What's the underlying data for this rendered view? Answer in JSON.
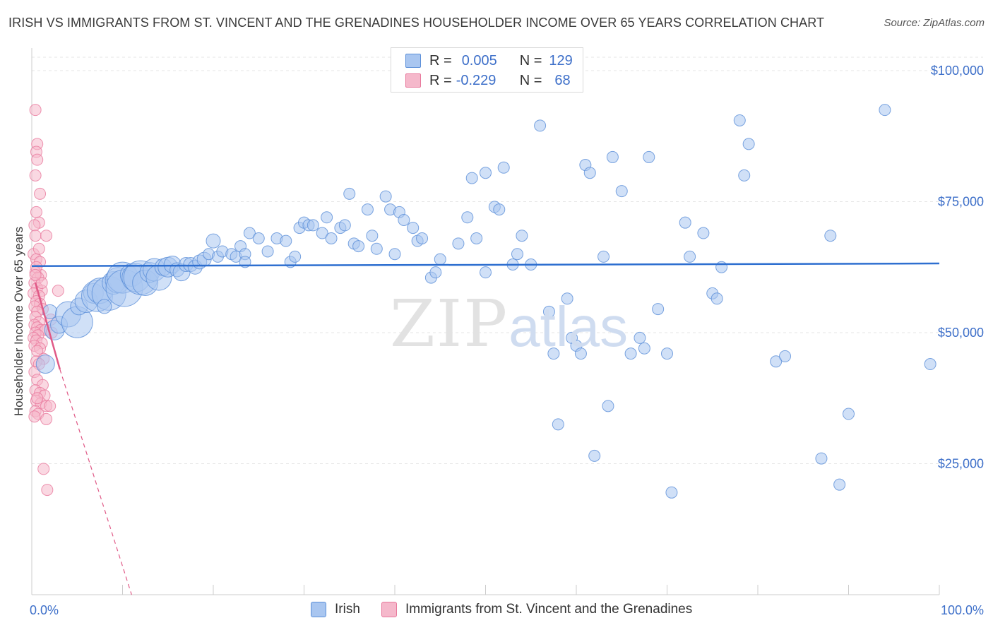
{
  "title": "IRISH VS IMMIGRANTS FROM ST. VINCENT AND THE GRENADINES HOUSEHOLDER INCOME OVER 65 YEARS CORRELATION CHART",
  "source": "Source: ZipAtlas.com",
  "watermark": {
    "zip": "ZIP",
    "atlas": "atlas"
  },
  "legend_box": {
    "rows": [
      {
        "r_label": "R =",
        "r_value": "0.005",
        "n_label": "N =",
        "n_value": "129",
        "color": "#a9c6f0"
      },
      {
        "r_label": "R =",
        "r_value": "-0.229",
        "n_label": "N =",
        "n_value": "68",
        "color": "#f5b8cb"
      }
    ]
  },
  "bottom_legend": {
    "irish": "Irish",
    "immigrants": "Immigrants from St. Vincent and the Grenadines"
  },
  "colors": {
    "irish_fill": "#a9c6f0",
    "irish_stroke": "#5b8fd8",
    "irish_line": "#2e6fd0",
    "imm_fill": "#f5b8cb",
    "imm_stroke": "#e8789c",
    "imm_line": "#e05a87",
    "grid": "#e6e6e6",
    "axis_text": "#3d6fc9"
  },
  "chart_data": {
    "type": "scatter",
    "title": "IRISH VS IMMIGRANTS FROM ST. VINCENT AND THE GRENADINES HOUSEHOLDER INCOME OVER 65 YEARS CORRELATION CHART",
    "xlabel": "",
    "ylabel": "Householder Income Over 65 years",
    "xlim": [
      0,
      100
    ],
    "ylim": [
      0,
      100000
    ],
    "x_tick_labels": [
      "0.0%",
      "100.0%"
    ],
    "y_ticks": [
      25000,
      50000,
      75000,
      100000
    ],
    "y_tick_labels": [
      "$25,000",
      "$50,000",
      "$75,000",
      "$100,000"
    ],
    "grid": true,
    "legend_position": "top-center",
    "series": [
      {
        "name": "Irish",
        "trend": {
          "x": [
            0,
            100
          ],
          "y": [
            62700,
            63200
          ]
        },
        "points": [
          [
            1.5,
            44000,
            13
          ],
          [
            2,
            54000,
            10
          ],
          [
            2.5,
            50500,
            14
          ],
          [
            3,
            51500,
            12
          ],
          [
            4,
            53500,
            18
          ],
          [
            5,
            52000,
            22
          ],
          [
            5.2,
            55000,
            12
          ],
          [
            6,
            56000,
            16
          ],
          [
            6.8,
            57500,
            14
          ],
          [
            7.2,
            57000,
            22
          ],
          [
            7.5,
            58000,
            18
          ],
          [
            8.5,
            57500,
            24
          ],
          [
            9,
            59500,
            16
          ],
          [
            9.5,
            60000,
            18
          ],
          [
            10,
            60500,
            22
          ],
          [
            10.2,
            58500,
            26
          ],
          [
            11,
            61000,
            16
          ],
          [
            11.5,
            60500,
            20
          ],
          [
            12,
            60500,
            24
          ],
          [
            12.5,
            59500,
            18
          ],
          [
            13,
            61500,
            14
          ],
          [
            13.5,
            62000,
            16
          ],
          [
            14,
            60500,
            18
          ],
          [
            14.5,
            62500,
            12
          ],
          [
            15,
            62500,
            14
          ],
          [
            15.5,
            63000,
            12
          ],
          [
            16,
            62000,
            10
          ],
          [
            16.5,
            61500,
            12
          ],
          [
            17,
            63000,
            10
          ],
          [
            17.5,
            63000,
            10
          ],
          [
            18,
            62500,
            10
          ],
          [
            18.5,
            63500,
            10
          ],
          [
            19,
            64000,
            10
          ],
          [
            19.5,
            65000,
            8
          ],
          [
            20,
            67500,
            10
          ],
          [
            20.5,
            64500,
            8
          ],
          [
            21,
            65500,
            8
          ],
          [
            22,
            65000,
            8
          ],
          [
            22.5,
            64500,
            8
          ],
          [
            23,
            66500,
            8
          ],
          [
            23.5,
            65000,
            8
          ],
          [
            24,
            69000,
            8
          ],
          [
            25,
            68000,
            8
          ],
          [
            26,
            65500,
            8
          ],
          [
            27,
            68000,
            8
          ],
          [
            28,
            67500,
            8
          ],
          [
            28.5,
            63500,
            8
          ],
          [
            29,
            64500,
            8
          ],
          [
            29.5,
            70000,
            8
          ],
          [
            30,
            71000,
            8
          ],
          [
            30.5,
            70500,
            8
          ],
          [
            31,
            70500,
            8
          ],
          [
            32,
            69000,
            8
          ],
          [
            32.5,
            72000,
            8
          ],
          [
            33,
            68000,
            8
          ],
          [
            34,
            70000,
            8
          ],
          [
            34.5,
            70500,
            8
          ],
          [
            35,
            76500,
            8
          ],
          [
            35.5,
            67000,
            8
          ],
          [
            36,
            66500,
            8
          ],
          [
            37,
            73500,
            8
          ],
          [
            37.5,
            68500,
            8
          ],
          [
            38,
            66000,
            8
          ],
          [
            39,
            76000,
            8
          ],
          [
            39.5,
            73500,
            8
          ],
          [
            40,
            65000,
            8
          ],
          [
            40.5,
            73000,
            8
          ],
          [
            41,
            71500,
            8
          ],
          [
            42,
            70000,
            8
          ],
          [
            42.5,
            67500,
            8
          ],
          [
            43,
            68000,
            8
          ],
          [
            44,
            60500,
            8
          ],
          [
            44.5,
            61500,
            8
          ],
          [
            45,
            64000,
            8
          ],
          [
            46,
            98500,
            8
          ],
          [
            47,
            67000,
            8
          ],
          [
            48,
            72000,
            8
          ],
          [
            48.5,
            79500,
            8
          ],
          [
            49,
            68000,
            8
          ],
          [
            50,
            80500,
            8
          ],
          [
            51,
            74000,
            8
          ],
          [
            51.5,
            73500,
            8
          ],
          [
            52,
            81500,
            8
          ],
          [
            53,
            63000,
            8
          ],
          [
            53.5,
            65000,
            8
          ],
          [
            54,
            68500,
            8
          ],
          [
            55,
            63000,
            8
          ],
          [
            56,
            89500,
            8
          ],
          [
            57,
            54000,
            8
          ],
          [
            57.5,
            46000,
            8
          ],
          [
            58,
            32500,
            8
          ],
          [
            59,
            56500,
            8
          ],
          [
            59.5,
            49000,
            8
          ],
          [
            60,
            47500,
            8
          ],
          [
            60.5,
            46000,
            8
          ],
          [
            61,
            82000,
            8
          ],
          [
            61.5,
            80500,
            8
          ],
          [
            62,
            26500,
            8
          ],
          [
            63,
            64500,
            8
          ],
          [
            63.5,
            36000,
            8
          ],
          [
            64,
            83500,
            8
          ],
          [
            65,
            77000,
            8
          ],
          [
            66,
            46000,
            8
          ],
          [
            67,
            49000,
            8
          ],
          [
            67.5,
            47000,
            8
          ],
          [
            68,
            83500,
            8
          ],
          [
            69,
            54500,
            8
          ],
          [
            70,
            46000,
            8
          ],
          [
            70.5,
            19500,
            8
          ],
          [
            72,
            71000,
            8
          ],
          [
            72.5,
            64500,
            8
          ],
          [
            74,
            69000,
            8
          ],
          [
            75,
            57500,
            8
          ],
          [
            75.5,
            56500,
            8
          ],
          [
            76,
            62500,
            8
          ],
          [
            78,
            90500,
            8
          ],
          [
            78.5,
            80000,
            8
          ],
          [
            79,
            86000,
            8
          ],
          [
            82,
            44500,
            8
          ],
          [
            83,
            45500,
            8
          ],
          [
            87,
            26000,
            8
          ],
          [
            88,
            68500,
            8
          ],
          [
            89,
            21000,
            8
          ],
          [
            90,
            34500,
            8
          ],
          [
            94,
            92500,
            8
          ],
          [
            99,
            44000,
            8
          ],
          [
            23.5,
            63500,
            8
          ],
          [
            50,
            61500,
            8
          ],
          [
            8,
            55000,
            10
          ]
        ]
      },
      {
        "name": "Immigrants from St. Vincent and the Grenadines",
        "trend": {
          "solid_x": [
            0.4,
            3.1
          ],
          "solid_y": [
            59500,
            43000
          ],
          "dashed_x": [
            3.1,
            11
          ],
          "dashed_y": [
            43000,
            0
          ]
        },
        "points": [
          [
            0.4,
            92500,
            8
          ],
          [
            0.6,
            86000,
            8
          ],
          [
            0.5,
            84500,
            8
          ],
          [
            0.6,
            83000,
            8
          ],
          [
            0.4,
            80000,
            8
          ],
          [
            0.9,
            76500,
            8
          ],
          [
            0.5,
            73000,
            8
          ],
          [
            0.8,
            71000,
            8
          ],
          [
            0.3,
            70500,
            8
          ],
          [
            0.4,
            68500,
            8
          ],
          [
            1.6,
            68500,
            8
          ],
          [
            0.2,
            65000,
            8
          ],
          [
            0.5,
            64000,
            8
          ],
          [
            0.9,
            63500,
            8
          ],
          [
            0.4,
            61500,
            8
          ],
          [
            1.0,
            61000,
            8
          ],
          [
            0.7,
            60500,
            8
          ],
          [
            0.3,
            59500,
            8
          ],
          [
            0.6,
            58500,
            8
          ],
          [
            1.1,
            58000,
            8
          ],
          [
            0.2,
            57500,
            8
          ],
          [
            0.8,
            57000,
            8
          ],
          [
            2.9,
            58000,
            8
          ],
          [
            0.5,
            56000,
            8
          ],
          [
            0.9,
            55500,
            8
          ],
          [
            0.3,
            55000,
            8
          ],
          [
            1.2,
            54500,
            8
          ],
          [
            0.6,
            54000,
            8
          ],
          [
            0.4,
            53000,
            8
          ],
          [
            2.1,
            52500,
            8
          ],
          [
            0.8,
            52000,
            8
          ],
          [
            0.3,
            51500,
            8
          ],
          [
            0.6,
            51000,
            8
          ],
          [
            1.0,
            50500,
            8
          ],
          [
            1.5,
            50500,
            8
          ],
          [
            0.4,
            50000,
            8
          ],
          [
            2.2,
            50000,
            8
          ],
          [
            0.7,
            49500,
            8
          ],
          [
            0.2,
            49000,
            8
          ],
          [
            0.5,
            48500,
            8
          ],
          [
            1.1,
            48000,
            8
          ],
          [
            0.3,
            47500,
            8
          ],
          [
            0.9,
            47000,
            8
          ],
          [
            0.6,
            46500,
            8
          ],
          [
            1.3,
            45000,
            8
          ],
          [
            0.5,
            44500,
            8
          ],
          [
            0.8,
            44000,
            8
          ],
          [
            0.3,
            42500,
            8
          ],
          [
            0.6,
            41000,
            8
          ],
          [
            1.2,
            40000,
            8
          ],
          [
            0.4,
            39000,
            8
          ],
          [
            0.9,
            38500,
            8
          ],
          [
            1.4,
            38000,
            8
          ],
          [
            0.5,
            37000,
            8
          ],
          [
            1.0,
            36500,
            8
          ],
          [
            1.6,
            36000,
            8
          ],
          [
            2.0,
            36000,
            8
          ],
          [
            0.4,
            35000,
            8
          ],
          [
            0.7,
            34500,
            8
          ],
          [
            0.3,
            34000,
            8
          ],
          [
            1.6,
            33500,
            8
          ],
          [
            0.6,
            37500,
            8
          ],
          [
            1.3,
            24000,
            8
          ],
          [
            1.7,
            20000,
            8
          ],
          [
            0.5,
            62500,
            8
          ],
          [
            0.8,
            66000,
            8
          ],
          [
            1.1,
            59500,
            8
          ],
          [
            0.4,
            61000,
            8
          ]
        ]
      }
    ]
  }
}
